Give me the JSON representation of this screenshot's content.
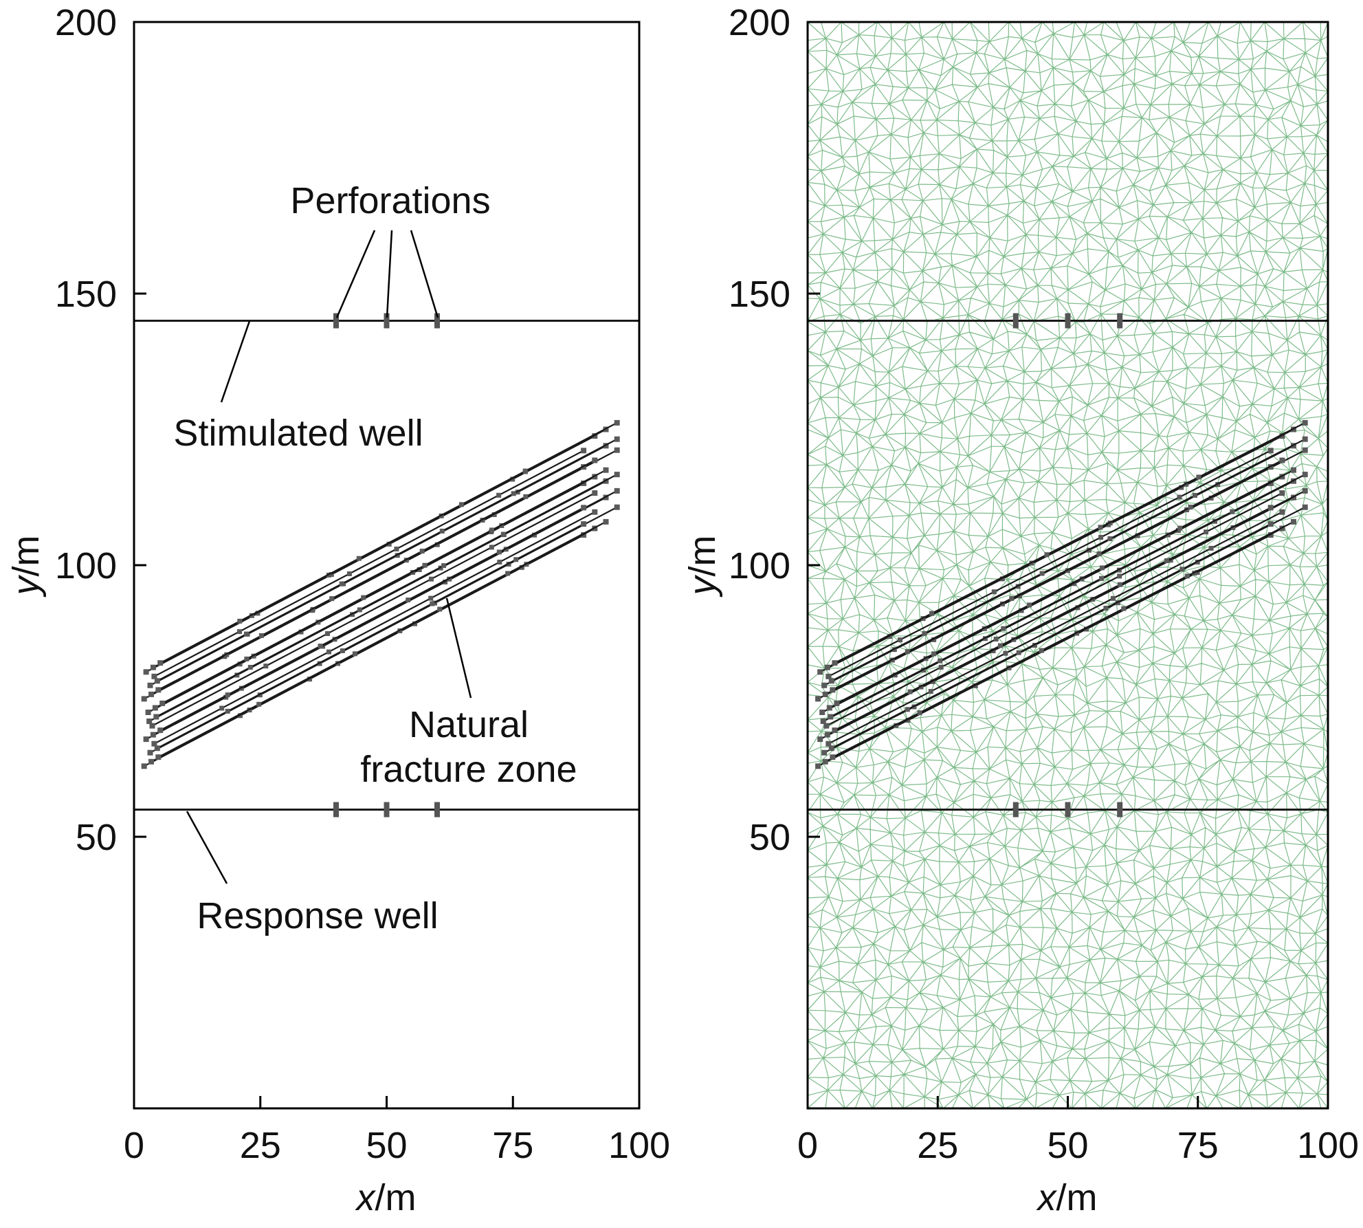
{
  "chart_data": [
    {
      "type": "scatter",
      "panel": "left",
      "xlabel": {
        "var": "x",
        "unit": "/m"
      },
      "ylabel": {
        "var": "y",
        "unit": "/m"
      },
      "xlim": [
        0,
        100
      ],
      "ylim": [
        0,
        200
      ],
      "xticks": [
        "0",
        "25",
        "50",
        "75",
        "100"
      ],
      "yticks": [
        "50",
        "100",
        "150",
        "200"
      ],
      "wells": [
        {
          "label": "Stimulated well",
          "y": 145,
          "x_range": [
            0,
            100
          ]
        },
        {
          "label": "Response well",
          "y": 55,
          "x_range": [
            0,
            100
          ]
        }
      ],
      "perforations_x": [
        40,
        50,
        60
      ],
      "natural_fracture_zone": {
        "count": 24,
        "orientation_deg": 27,
        "x_range": [
          2,
          97
        ],
        "y_range": [
          63,
          135
        ]
      },
      "annotations": [
        "Perforations",
        "Stimulated well",
        "Natural",
        "fracture zone",
        "Response well"
      ],
      "mesh": false
    },
    {
      "type": "scatter",
      "panel": "right",
      "xlabel": {
        "var": "x",
        "unit": "/m"
      },
      "ylabel": {
        "var": "y",
        "unit": "/m"
      },
      "xlim": [
        0,
        100
      ],
      "ylim": [
        0,
        200
      ],
      "xticks": [
        "0",
        "25",
        "50",
        "75",
        "100"
      ],
      "yticks": [
        "50",
        "100",
        "150",
        "200"
      ],
      "wells": [
        {
          "y": 145,
          "x_range": [
            0,
            100
          ]
        },
        {
          "y": 55,
          "x_range": [
            0,
            100
          ]
        }
      ],
      "perforations_x": [
        40,
        50,
        60
      ],
      "natural_fracture_zone": {
        "count": 24,
        "orientation_deg": 27,
        "x_range": [
          2,
          97
        ],
        "y_range": [
          63,
          135
        ]
      },
      "mesh": true,
      "mesh_color": "#7dbb8a"
    }
  ],
  "colors": {
    "mesh": "#7dbb8a",
    "fracture": "#1a1a1a",
    "frame": "#000000"
  }
}
